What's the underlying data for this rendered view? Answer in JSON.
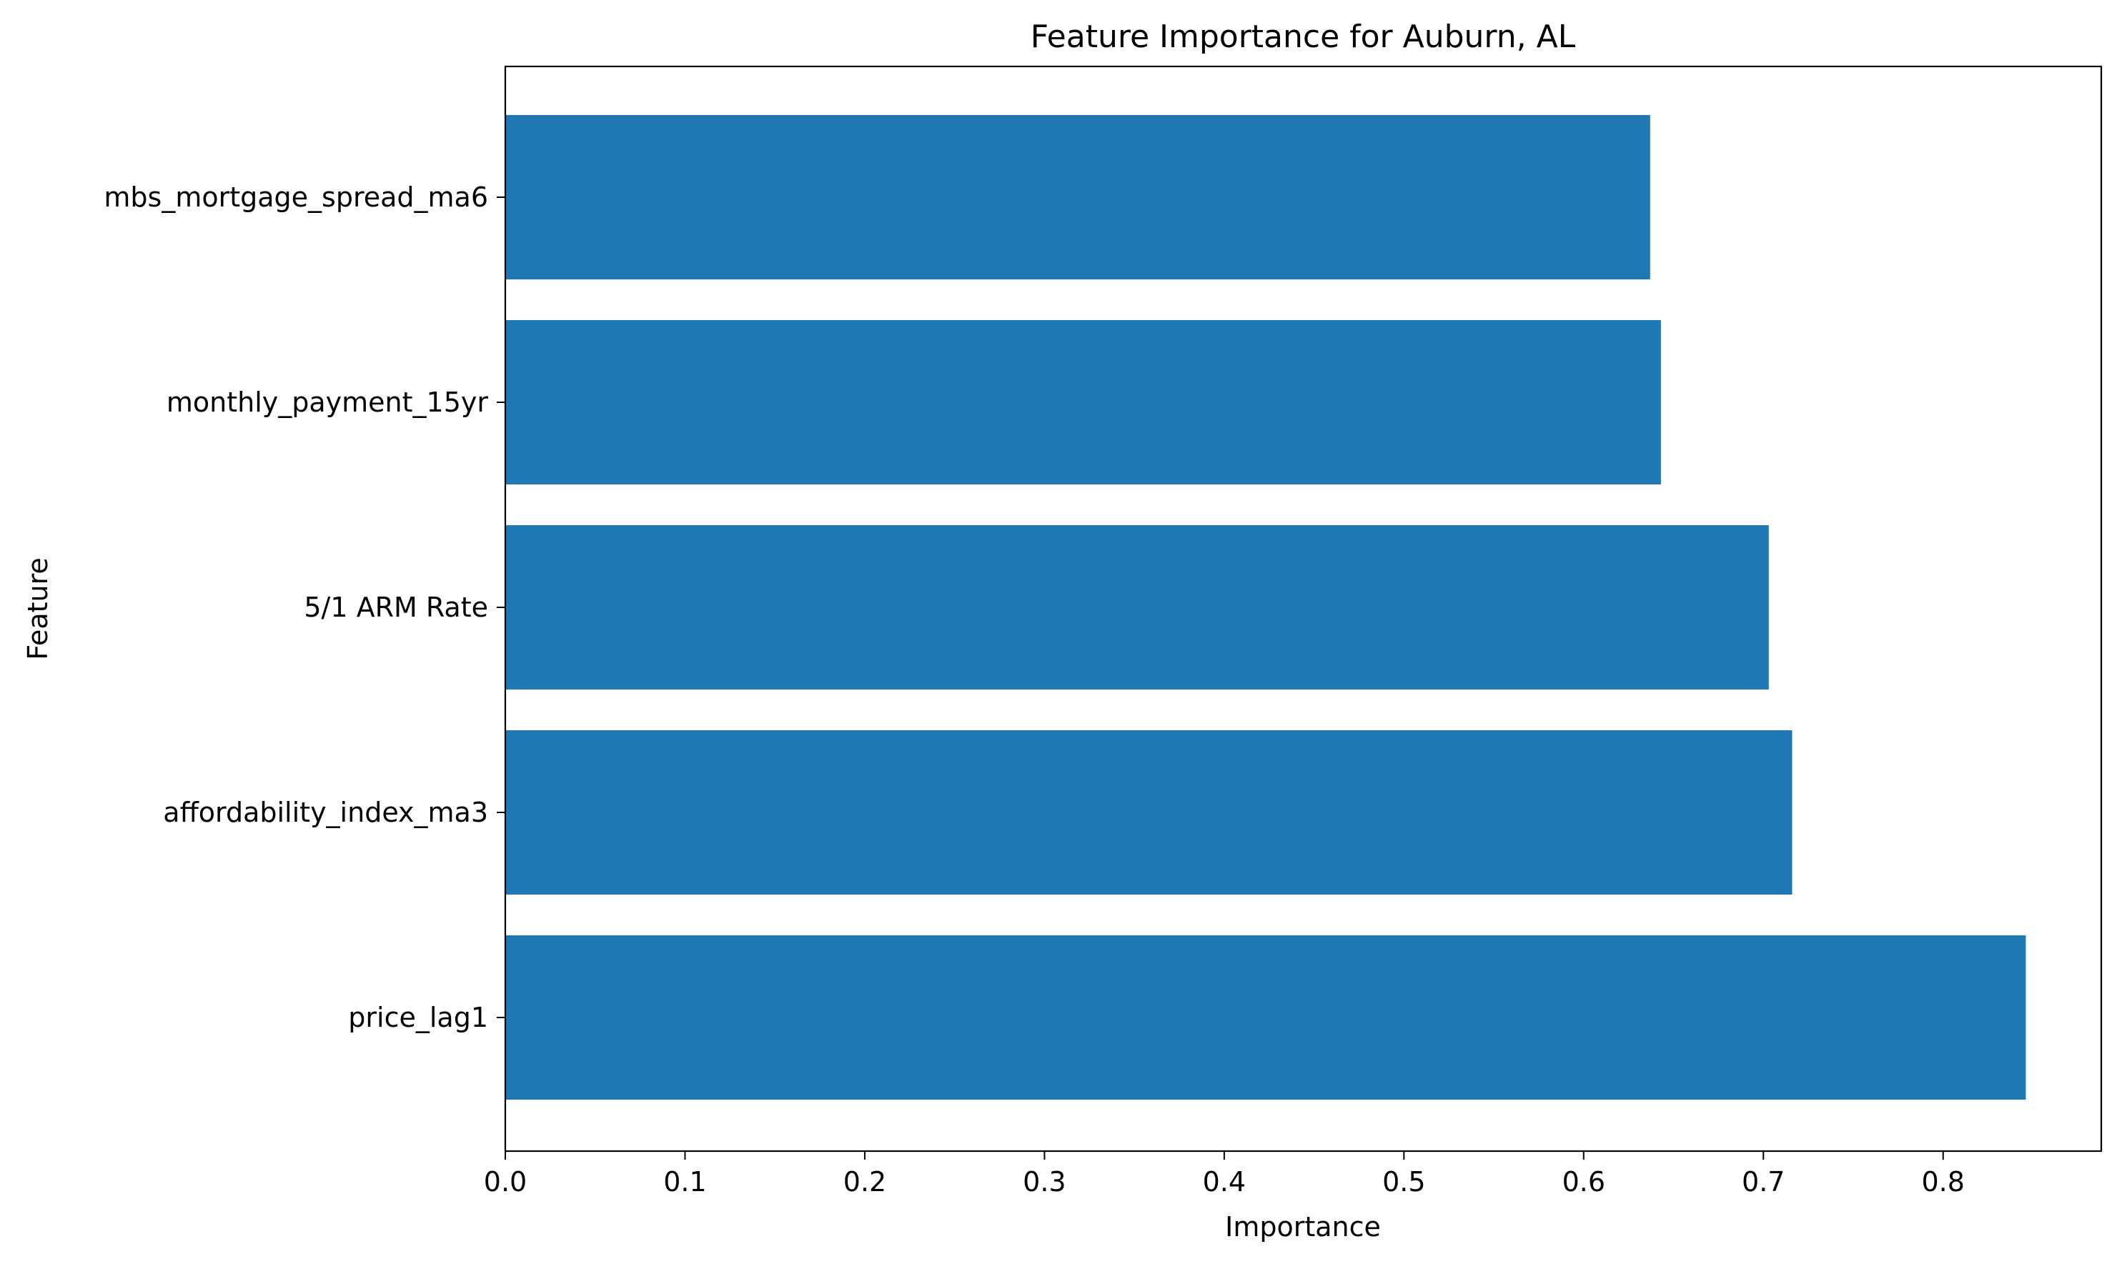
{
  "chart_data": {
    "type": "bar",
    "orientation": "horizontal",
    "title": "Feature Importance for Auburn, AL",
    "xlabel": "Importance",
    "ylabel": "Feature",
    "categories": [
      "price_lag1",
      "affordability_index_ma3",
      "5/1 ARM Rate",
      "monthly_payment_15yr",
      "mbs_mortgage_spread_ma6"
    ],
    "values": [
      0.846,
      0.716,
      0.703,
      0.643,
      0.637
    ],
    "xlim": [
      0,
      0.888
    ],
    "xticks": [
      0.0,
      0.1,
      0.2,
      0.3,
      0.4,
      0.5,
      0.6,
      0.7,
      0.8
    ],
    "xtick_labels": [
      "0.0",
      "0.1",
      "0.2",
      "0.3",
      "0.4",
      "0.5",
      "0.6",
      "0.7",
      "0.8"
    ],
    "bar_color": "#1f77b4",
    "grid": false,
    "legend": "none"
  }
}
